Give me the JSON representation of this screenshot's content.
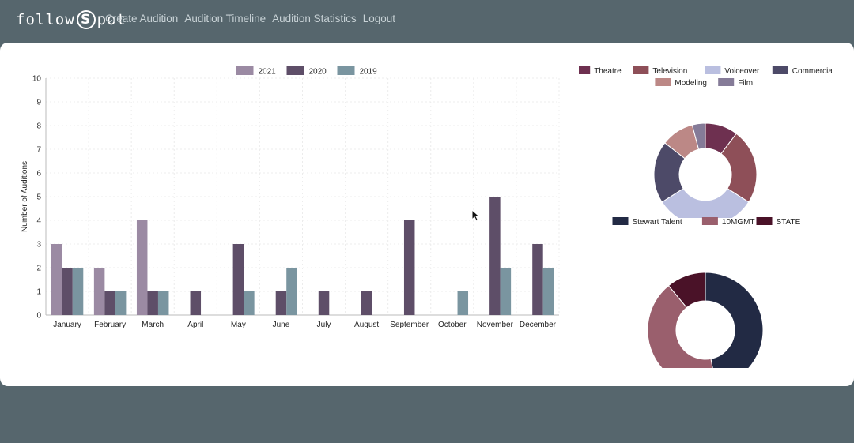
{
  "nav": {
    "logo_left": "follow",
    "logo_mark": "S",
    "logo_right": "pot",
    "items": [
      {
        "label": "Create Audition"
      },
      {
        "label": "Audition Timeline"
      },
      {
        "label": "Audition Statistics"
      },
      {
        "label": "Logout"
      }
    ]
  },
  "colors": {
    "background": "#56666d",
    "card": "#ffffff"
  },
  "chart_data": [
    {
      "type": "bar",
      "ylabel": "Number of Auditions",
      "xlabel": "",
      "ylim": [
        0,
        10
      ],
      "yticks": [
        0,
        1,
        2,
        3,
        4,
        5,
        6,
        7,
        8,
        9,
        10
      ],
      "grid": true,
      "legend": "top-center",
      "categories": [
        "January",
        "February",
        "March",
        "April",
        "May",
        "June",
        "July",
        "August",
        "September",
        "October",
        "November",
        "December"
      ],
      "series": [
        {
          "name": "2021",
          "color": "#9b8aa3",
          "values": [
            3,
            2,
            4,
            0,
            0,
            0,
            0,
            0,
            0,
            0,
            0,
            0
          ]
        },
        {
          "name": "2020",
          "color": "#5e4e68",
          "values": [
            2,
            1,
            1,
            1,
            3,
            1,
            1,
            1,
            4,
            0,
            5,
            3
          ]
        },
        {
          "name": "2019",
          "color": "#7a95a0",
          "values": [
            2,
            1,
            1,
            0,
            1,
            2,
            0,
            0,
            0,
            1,
            2,
            2
          ]
        }
      ]
    },
    {
      "type": "pie",
      "donut": true,
      "legend": "top-center",
      "labels": [
        "Theatre",
        "Television",
        "Voiceover",
        "Commercial",
        "Modeling",
        "Film"
      ],
      "colors": [
        "#6e3050",
        "#8e4f58",
        "#babfe0",
        "#4d4a68",
        "#bc8886",
        "#857b98"
      ],
      "values": [
        10,
        23,
        31,
        19,
        10,
        4
      ]
    },
    {
      "type": "pie",
      "donut": true,
      "legend": "top-center",
      "labels": [
        "Stewart Talent",
        "10MGMT",
        "STATE"
      ],
      "colors": [
        "#222a44",
        "#9a5f6d",
        "#4a1228"
      ],
      "values": [
        47,
        42,
        11
      ]
    }
  ]
}
